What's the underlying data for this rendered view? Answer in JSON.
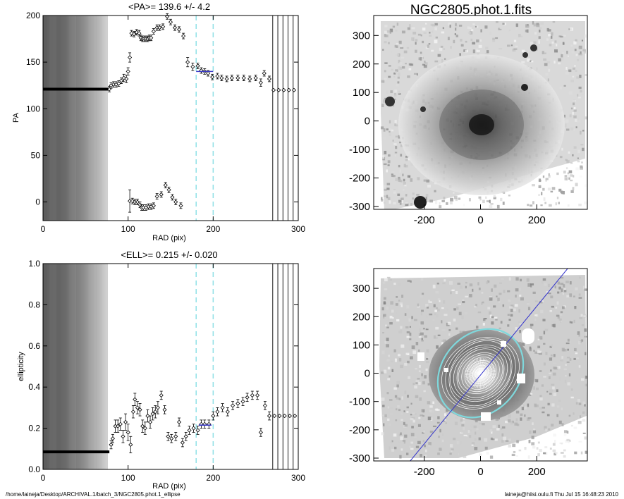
{
  "chart_data": [
    {
      "type": "scatter",
      "title": "<PA>= 139.6 +/-   4.2",
      "xlabel": "RAD (pix)",
      "ylabel": "PA",
      "xlim": [
        0,
        300
      ],
      "ylim": [
        -20,
        200
      ],
      "xticks": [
        "0",
        "100",
        "200",
        "300"
      ],
      "yticks": [
        "0",
        "50",
        "100",
        "150",
        "200"
      ],
      "vlines_dashed_cyan": [
        180,
        200
      ],
      "vlines_black_right": [
        270,
        276,
        282,
        288,
        294,
        300
      ],
      "dense_region": {
        "x_range": [
          0,
          76
        ],
        "y_value": 121
      },
      "fit_segment": {
        "x_range": [
          180,
          200
        ],
        "y_value": 140,
        "color": "#3a3ac8"
      },
      "points": [
        {
          "x": 78,
          "y": 121,
          "err": 3
        },
        {
          "x": 80,
          "y": 125,
          "err": 3
        },
        {
          "x": 83,
          "y": 126,
          "err": 3
        },
        {
          "x": 86,
          "y": 126,
          "err": 3
        },
        {
          "x": 89,
          "y": 127,
          "err": 3
        },
        {
          "x": 92,
          "y": 130,
          "err": 3
        },
        {
          "x": 95,
          "y": 133,
          "err": 4
        },
        {
          "x": 98,
          "y": 132,
          "err": 4
        },
        {
          "x": 100,
          "y": 140,
          "err": 4
        },
        {
          "x": 102,
          "y": 155,
          "err": 5
        },
        {
          "x": 104,
          "y": 181,
          "err": 3
        },
        {
          "x": 107,
          "y": 180,
          "err": 3
        },
        {
          "x": 110,
          "y": 182,
          "err": 3
        },
        {
          "x": 113,
          "y": 181,
          "err": 3
        },
        {
          "x": 115,
          "y": 176,
          "err": 3
        },
        {
          "x": 117,
          "y": 175,
          "err": 3
        },
        {
          "x": 119,
          "y": 175,
          "err": 3
        },
        {
          "x": 121,
          "y": 175,
          "err": 3
        },
        {
          "x": 123,
          "y": 175,
          "err": 3
        },
        {
          "x": 125,
          "y": 176,
          "err": 3
        },
        {
          "x": 127,
          "y": 176,
          "err": 3
        },
        {
          "x": 130,
          "y": 183,
          "err": 3
        },
        {
          "x": 134,
          "y": 187,
          "err": 3
        },
        {
          "x": 137,
          "y": 187,
          "err": 3
        },
        {
          "x": 141,
          "y": 188,
          "err": 3
        },
        {
          "x": 146,
          "y": 199,
          "err": 3
        },
        {
          "x": 150,
          "y": 193,
          "err": 3
        },
        {
          "x": 155,
          "y": 187,
          "err": 3
        },
        {
          "x": 160,
          "y": 185,
          "err": 3
        },
        {
          "x": 165,
          "y": 178,
          "err": 3
        },
        {
          "x": 170,
          "y": 150,
          "err": 5
        },
        {
          "x": 176,
          "y": 145,
          "err": 4
        },
        {
          "x": 182,
          "y": 146,
          "err": 3
        },
        {
          "x": 186,
          "y": 141,
          "err": 3
        },
        {
          "x": 190,
          "y": 140,
          "err": 3
        },
        {
          "x": 194,
          "y": 138,
          "err": 3
        },
        {
          "x": 199,
          "y": 134,
          "err": 3
        },
        {
          "x": 205,
          "y": 135,
          "err": 3
        },
        {
          "x": 210,
          "y": 133,
          "err": 3
        },
        {
          "x": 216,
          "y": 132,
          "err": 3
        },
        {
          "x": 222,
          "y": 133,
          "err": 3
        },
        {
          "x": 229,
          "y": 133,
          "err": 3
        },
        {
          "x": 236,
          "y": 133,
          "err": 3
        },
        {
          "x": 243,
          "y": 132,
          "err": 3
        },
        {
          "x": 250,
          "y": 133,
          "err": 3
        },
        {
          "x": 256,
          "y": 128,
          "err": 4
        },
        {
          "x": 260,
          "y": 138,
          "err": 3
        },
        {
          "x": 266,
          "y": 132,
          "err": 3
        },
        {
          "x": 271,
          "y": 120,
          "err": 0
        },
        {
          "x": 277,
          "y": 120,
          "err": 0
        },
        {
          "x": 283,
          "y": 120,
          "err": 0
        },
        {
          "x": 289,
          "y": 120,
          "err": 0
        },
        {
          "x": 295,
          "y": 120,
          "err": 0
        },
        {
          "x": 102,
          "y": 1,
          "err": 12
        },
        {
          "x": 105,
          "y": 1,
          "err": 3
        },
        {
          "x": 108,
          "y": 0,
          "err": 3
        },
        {
          "x": 111,
          "y": 0,
          "err": 3
        },
        {
          "x": 114,
          "y": -3,
          "err": 3
        },
        {
          "x": 116,
          "y": -6,
          "err": 3
        },
        {
          "x": 118,
          "y": -6,
          "err": 3
        },
        {
          "x": 121,
          "y": -6,
          "err": 3
        },
        {
          "x": 124,
          "y": -5,
          "err": 3
        },
        {
          "x": 127,
          "y": -5,
          "err": 3
        },
        {
          "x": 130,
          "y": -4,
          "err": 3
        },
        {
          "x": 134,
          "y": 6,
          "err": 3
        },
        {
          "x": 139,
          "y": 8,
          "err": 3
        },
        {
          "x": 144,
          "y": 18,
          "err": 3
        },
        {
          "x": 148,
          "y": 13,
          "err": 3
        },
        {
          "x": 152,
          "y": 5,
          "err": 3
        },
        {
          "x": 156,
          "y": 0,
          "err": 3
        },
        {
          "x": 162,
          "y": -4,
          "err": 3
        }
      ]
    },
    {
      "type": "scatter",
      "title": "<ELL>= 0.215 +/-  0.020",
      "xlabel": "RAD (pix)",
      "ylabel": "ellipticity",
      "xlim": [
        0,
        300
      ],
      "ylim": [
        0,
        1
      ],
      "xticks": [
        "0",
        "100",
        "200",
        "300"
      ],
      "yticks": [
        "0.0",
        "0.2",
        "0.4",
        "0.6",
        "0.8",
        "1.0"
      ],
      "vlines_dashed_cyan": [
        180,
        200
      ],
      "vlines_black_right": [
        270,
        276,
        282,
        288,
        294,
        300
      ],
      "dense_region": {
        "x_range": [
          0,
          76
        ],
        "y_value": 0.085
      },
      "fit_segment": {
        "x_range": [
          183,
          198
        ],
        "y_value": 0.215,
        "color": "#3a3ac8"
      },
      "points": [
        {
          "x": 80,
          "y": 0.12,
          "err": 0.02
        },
        {
          "x": 82,
          "y": 0.15,
          "err": 0.02
        },
        {
          "x": 85,
          "y": 0.21,
          "err": 0.03
        },
        {
          "x": 88,
          "y": 0.21,
          "err": 0.03
        },
        {
          "x": 91,
          "y": 0.22,
          "err": 0.03
        },
        {
          "x": 94,
          "y": 0.16,
          "err": 0.03
        },
        {
          "x": 97,
          "y": 0.23,
          "err": 0.04
        },
        {
          "x": 100,
          "y": 0.18,
          "err": 0.04
        },
        {
          "x": 103,
          "y": 0.12,
          "err": 0.04
        },
        {
          "x": 106,
          "y": 0.28,
          "err": 0.03
        },
        {
          "x": 108,
          "y": 0.34,
          "err": 0.03
        },
        {
          "x": 111,
          "y": 0.3,
          "err": 0.03
        },
        {
          "x": 114,
          "y": 0.29,
          "err": 0.03
        },
        {
          "x": 117,
          "y": 0.21,
          "err": 0.03
        },
        {
          "x": 120,
          "y": 0.2,
          "err": 0.03
        },
        {
          "x": 123,
          "y": 0.26,
          "err": 0.03
        },
        {
          "x": 126,
          "y": 0.23,
          "err": 0.03
        },
        {
          "x": 129,
          "y": 0.27,
          "err": 0.03
        },
        {
          "x": 132,
          "y": 0.28,
          "err": 0.03
        },
        {
          "x": 135,
          "y": 0.3,
          "err": 0.03
        },
        {
          "x": 139,
          "y": 0.36,
          "err": 0.02
        },
        {
          "x": 143,
          "y": 0.29,
          "err": 0.02
        },
        {
          "x": 147,
          "y": 0.16,
          "err": 0.02
        },
        {
          "x": 151,
          "y": 0.15,
          "err": 0.02
        },
        {
          "x": 156,
          "y": 0.16,
          "err": 0.02
        },
        {
          "x": 160,
          "y": 0.23,
          "err": 0.02
        },
        {
          "x": 164,
          "y": 0.13,
          "err": 0.02
        },
        {
          "x": 168,
          "y": 0.16,
          "err": 0.02
        },
        {
          "x": 172,
          "y": 0.19,
          "err": 0.02
        },
        {
          "x": 177,
          "y": 0.2,
          "err": 0.02
        },
        {
          "x": 182,
          "y": 0.19,
          "err": 0.02
        },
        {
          "x": 186,
          "y": 0.22,
          "err": 0.02
        },
        {
          "x": 190,
          "y": 0.22,
          "err": 0.02
        },
        {
          "x": 195,
          "y": 0.22,
          "err": 0.02
        },
        {
          "x": 200,
          "y": 0.26,
          "err": 0.02
        },
        {
          "x": 205,
          "y": 0.28,
          "err": 0.02
        },
        {
          "x": 211,
          "y": 0.3,
          "err": 0.02
        },
        {
          "x": 217,
          "y": 0.28,
          "err": 0.02
        },
        {
          "x": 223,
          "y": 0.31,
          "err": 0.02
        },
        {
          "x": 229,
          "y": 0.32,
          "err": 0.02
        },
        {
          "x": 235,
          "y": 0.33,
          "err": 0.02
        },
        {
          "x": 240,
          "y": 0.35,
          "err": 0.02
        },
        {
          "x": 246,
          "y": 0.36,
          "err": 0.02
        },
        {
          "x": 252,
          "y": 0.36,
          "err": 0.02
        },
        {
          "x": 256,
          "y": 0.18,
          "err": 0.02
        },
        {
          "x": 261,
          "y": 0.31,
          "err": 0.02
        },
        {
          "x": 266,
          "y": 0.26,
          "err": 0.02
        },
        {
          "x": 272,
          "y": 0.26,
          "err": 0
        },
        {
          "x": 278,
          "y": 0.26,
          "err": 0
        },
        {
          "x": 284,
          "y": 0.26,
          "err": 0
        },
        {
          "x": 290,
          "y": 0.26,
          "err": 0
        },
        {
          "x": 296,
          "y": 0.26,
          "err": 0
        }
      ]
    },
    {
      "type": "heatmap",
      "title": "NGC2805.phot.1.fits",
      "xlim": [
        -380,
        380
      ],
      "ylim": [
        -310,
        370
      ],
      "xticks": [
        "-200",
        "0",
        "200"
      ],
      "yticks": [
        "-300",
        "-200",
        "-100",
        "0",
        "100",
        "200",
        "300"
      ],
      "colormap": "inverted grayscale"
    },
    {
      "type": "heatmap",
      "title": "",
      "xlim": [
        -380,
        380
      ],
      "ylim": [
        -310,
        370
      ],
      "xticks": [
        "-200",
        "0",
        "200"
      ],
      "yticks": [
        "-300",
        "-200",
        "-100",
        "0",
        "100",
        "200",
        "300"
      ],
      "colormap": "inverted grayscale",
      "overlays": {
        "ellipse_cyan": {
          "center": [
            0,
            0
          ],
          "semi_major": 170,
          "semi_minor": 138,
          "pa_deg": 140
        },
        "ellipse_white_count": 14,
        "pa_line": {
          "from": [
            -250,
            -310
          ],
          "to": [
            310,
            370
          ],
          "color": "#3333cc"
        }
      }
    }
  ],
  "footer": {
    "left": "/home/laineja/Desktop/ARCHIVAL.1/batch_3/NGC2805.phot.1_ellipse",
    "right": "laineja@hiisi.oulu.fi  Thu Jul 15 16:48:23 2010"
  }
}
